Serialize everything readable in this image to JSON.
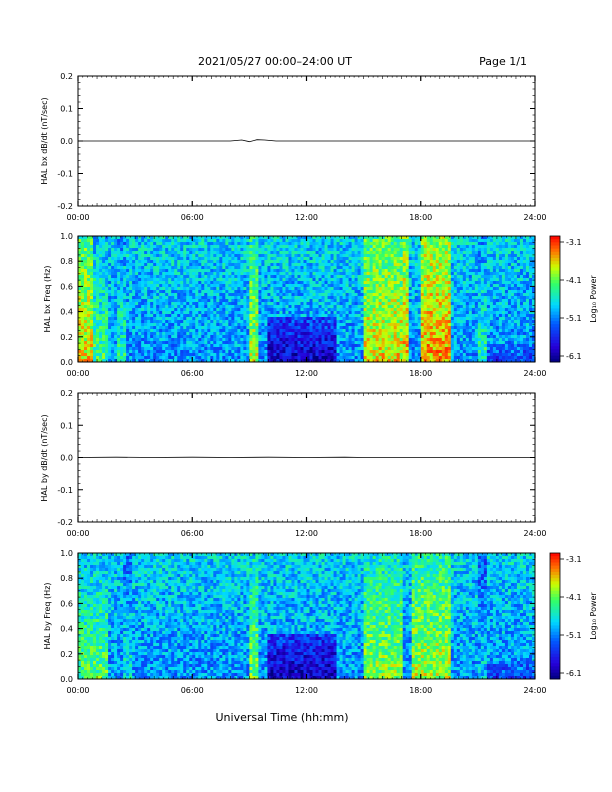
{
  "header": {
    "date_range": "2021/05/27  00:00–24:00 UT",
    "page": "Page 1/1"
  },
  "xlabel": "Universal Time (hh:mm)",
  "x_ticks": [
    "00:00",
    "06:00",
    "12:00",
    "18:00",
    "24:00"
  ],
  "colorbar": {
    "label": "Log₁₀ Power",
    "ticks": [
      "-3.1",
      "-4.1",
      "-5.1",
      "-6.1"
    ],
    "range": [
      -6.1,
      -3.1
    ]
  },
  "chart_data": [
    {
      "type": "line",
      "ylabel": "HAL bx dB/dt (nT/sec)",
      "xlim": [
        0,
        24
      ],
      "ylim": [
        -0.2,
        0.2
      ],
      "y_ticks": [
        "0.2",
        "0.1",
        "0.0",
        "-0.1",
        "-0.2"
      ],
      "series": [
        {
          "x": [
            0,
            8.0,
            8.6,
            9.0,
            9.4,
            9.8,
            10.4,
            24
          ],
          "y": [
            0,
            0,
            0.003,
            -0.002,
            0.004,
            0.003,
            0,
            0
          ]
        }
      ]
    },
    {
      "type": "heatmap",
      "ylabel": "HAL bx Freq (Hz)",
      "xlim": [
        0,
        24
      ],
      "ylim": [
        0,
        1.0
      ],
      "y_ticks": [
        "1.0",
        "0.8",
        "0.6",
        "0.4",
        "0.2",
        "0.0"
      ],
      "bands": [
        {
          "x": [
            0,
            0.8
          ],
          "level": 0.78
        },
        {
          "x": [
            0.8,
            1.6
          ],
          "level": 0.6
        },
        {
          "x": [
            2.0,
            2.5
          ],
          "level": 0.55
        },
        {
          "x": [
            9.0,
            9.5
          ],
          "level": 0.72
        },
        {
          "x": [
            15.0,
            17.0
          ],
          "level": 0.78
        },
        {
          "x": [
            17.0,
            17.4
          ],
          "level": 0.82
        },
        {
          "x": [
            18.0,
            19.5
          ],
          "level": 0.85
        },
        {
          "x": [
            21.0,
            21.4
          ],
          "level": 0.55
        }
      ],
      "quiet": {
        "x": [
          10.0,
          13.5
        ],
        "level": 0.1
      }
    },
    {
      "type": "line",
      "ylabel": "HAL by dB/dt (nT/sec)",
      "xlim": [
        0,
        24
      ],
      "ylim": [
        -0.2,
        0.2
      ],
      "y_ticks": [
        "0.2",
        "0.1",
        "0.0",
        "-0.1",
        "-0.2"
      ],
      "series": [
        {
          "x": [
            0,
            2.0,
            4.0,
            6.0,
            8.0,
            10.0,
            12.0,
            14.0,
            15.0,
            24
          ],
          "y": [
            0,
            0.001,
            0,
            0.001,
            0,
            0.001,
            0,
            0.001,
            0,
            0
          ]
        }
      ]
    },
    {
      "type": "heatmap",
      "ylabel": "HAL by Freq (Hz)",
      "xlim": [
        0,
        24
      ],
      "ylim": [
        0,
        1.0
      ],
      "y_ticks": [
        "1.0",
        "0.8",
        "0.6",
        "0.4",
        "0.2",
        "0.0"
      ],
      "bands": [
        {
          "x": [
            0,
            1.5
          ],
          "level": 0.62
        },
        {
          "x": [
            2.3,
            2.8
          ],
          "level": 0.5
        },
        {
          "x": [
            9.0,
            9.5
          ],
          "level": 0.65
        },
        {
          "x": [
            15.0,
            17.0
          ],
          "level": 0.68
        },
        {
          "x": [
            17.5,
            19.5
          ],
          "level": 0.72
        },
        {
          "x": [
            21.0,
            21.4
          ],
          "level": 0.45
        }
      ],
      "quiet": {
        "x": [
          10.0,
          13.5
        ],
        "level": 0.08
      }
    }
  ]
}
